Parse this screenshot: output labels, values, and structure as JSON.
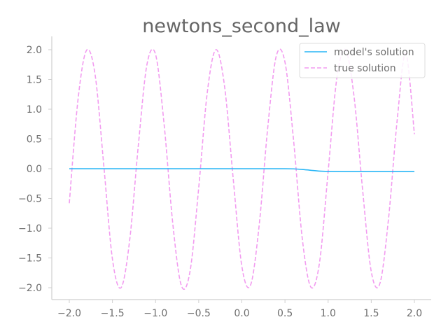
{
  "chart_data": {
    "type": "line",
    "title": "newtons_second_law",
    "xlabel": "",
    "ylabel": "",
    "xlim": [
      -2.2,
      2.2
    ],
    "ylim": [
      -2.2,
      2.2
    ],
    "x_ticks": [
      -2.0,
      -1.5,
      -1.0,
      -0.5,
      0.0,
      0.5,
      1.0,
      1.5,
      2.0
    ],
    "x_tick_labels": [
      "−2.0",
      "−1.5",
      "−1.0",
      "−0.5",
      "0.0",
      "0.5",
      "1.0",
      "1.5",
      "2.0"
    ],
    "y_ticks": [
      2.0,
      1.5,
      1.0,
      0.5,
      0.0,
      -0.5,
      -1.0,
      -1.5,
      -2.0
    ],
    "y_tick_labels": [
      "2.0",
      "1.5",
      "1.0",
      "0.5",
      "0.0",
      "−0.5",
      "−1.0",
      "−1.5",
      "−2.0"
    ],
    "grid": false,
    "legend_position": "top-right",
    "series": [
      {
        "name": "model's solution",
        "color": "#29b6f6",
        "style": "solid",
        "x": [
          -2.0,
          -1.5,
          -1.0,
          -0.5,
          0.0,
          0.3,
          0.5,
          0.6,
          0.7,
          0.8,
          0.9,
          1.0,
          1.2,
          1.5,
          2.0
        ],
        "y": [
          0.0,
          0.0,
          0.0,
          0.0,
          0.0,
          0.0,
          0.0,
          -0.003,
          -0.012,
          -0.027,
          -0.04,
          -0.045,
          -0.048,
          -0.048,
          -0.048
        ]
      },
      {
        "name": "true solution",
        "color": "#f29cf0",
        "style": "dashed",
        "x": [
          -2.0,
          -1.9,
          -1.8,
          -1.7,
          -1.6,
          -1.5,
          -1.4,
          -1.3,
          -1.2,
          -1.1,
          -1.0,
          -0.9,
          -0.8,
          -0.7,
          -0.6,
          -0.5,
          -0.4,
          -0.3,
          -0.2,
          -0.1,
          0.0,
          0.1,
          0.2,
          0.3,
          0.4,
          0.5,
          0.6,
          0.7,
          0.8,
          0.9,
          1.0,
          1.1,
          1.2,
          1.3,
          1.4,
          1.5,
          1.6,
          1.7,
          1.8,
          1.9,
          2.0
        ],
        "y": [
          -0.58,
          1.15,
          1.99,
          1.57,
          0.05,
          -1.52,
          -2.0,
          -1.2,
          0.39,
          1.75,
          1.92,
          0.73,
          -0.93,
          -1.97,
          -1.72,
          -0.32,
          1.29,
          2.0,
          1.38,
          -0.17,
          -1.64,
          -1.96,
          -0.96,
          0.69,
          1.9,
          1.79,
          0.47,
          -1.17,
          -1.99,
          -1.58,
          -0.05,
          1.51,
          2.0,
          1.22,
          -0.36,
          -1.73,
          -1.93,
          -0.84,
          0.81,
          1.94,
          0.58
        ]
      }
    ]
  }
}
